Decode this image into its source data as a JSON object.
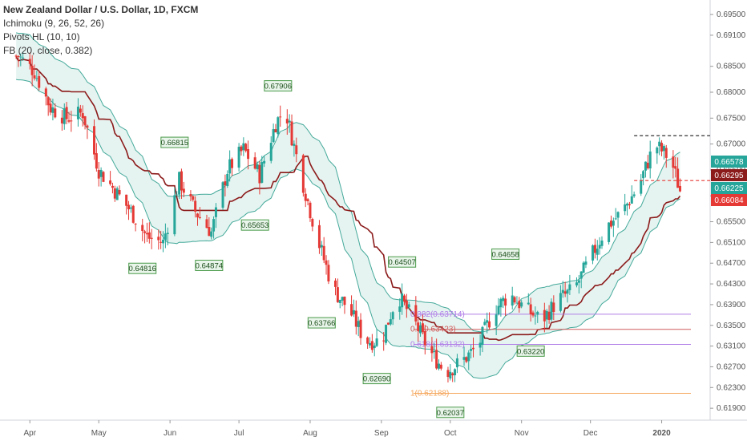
{
  "legend": {
    "symbol": "New Zealand Dollar / U.S. Dollar, 1D, FXCM",
    "indicators": [
      "Ichimoku (9, 26, 52, 26)",
      "Pivots HL (10, 10)",
      "FB (20, close, 0.382)"
    ]
  },
  "chart_data": {
    "type": "candlestick",
    "title": "New Zealand Dollar / U.S. Dollar, 1D, FXCM",
    "x_axis": {
      "ticks": [
        "Apr",
        "May",
        "Jun",
        "Jul",
        "Aug",
        "Sep",
        "Oct",
        "Nov",
        "Dec",
        "2020"
      ]
    },
    "y_axis": {
      "range": [
        0.6167,
        0.6978
      ],
      "ticks": [
        "0.69500",
        "0.69100",
        "0.68500",
        "0.68000",
        "0.67500",
        "0.67000",
        "0.66500",
        "0.66000",
        "0.65500",
        "0.65100",
        "0.64700",
        "0.64300",
        "0.63900",
        "0.63500",
        "0.63100",
        "0.62700",
        "0.62300",
        "0.61900"
      ]
    },
    "colors": {
      "up": "#26a69a",
      "down": "#e53935",
      "baseline": "#8b1a1a",
      "conversion": "#44a99a",
      "cloud": "#e6f4f1"
    },
    "pivots_high": [
      {
        "date": "2019-07-18",
        "value": "0.67906"
      },
      {
        "date": "2019-06-03",
        "value": "0.66815"
      },
      {
        "date": "2019-09-10",
        "value": "0.64507"
      },
      {
        "date": "2019-10-25",
        "value": "0.64658"
      }
    ],
    "pivots_low": [
      {
        "date": "2019-05-20",
        "value": "0.64816"
      },
      {
        "date": "2019-06-18",
        "value": "0.64874"
      },
      {
        "date": "2019-07-08",
        "value": "0.65653"
      },
      {
        "date": "2019-08-06",
        "value": "0.63766"
      },
      {
        "date": "2019-08-30",
        "value": "0.62690"
      },
      {
        "date": "2019-10-01",
        "value": "0.62037"
      },
      {
        "date": "2019-11-05",
        "value": "0.63220"
      }
    ],
    "fib_levels": [
      {
        "label": "0.382(0.63714)",
        "value": 0.63714,
        "color": "#b07ee8"
      },
      {
        "label": "0.5(0.63423)",
        "value": 0.63423,
        "color": "#d05a5a"
      },
      {
        "label": "0.618(0.63132)",
        "value": 0.63132,
        "color": "#b07ee8"
      },
      {
        "label": "1(0.62188)",
        "value": 0.62188,
        "color": "#f5a55a"
      }
    ],
    "price_badges": [
      {
        "value": "0.66578",
        "color": "#26a69a"
      },
      {
        "value": "0.66295",
        "color": "#8b1a1a"
      },
      {
        "value": "0.66225",
        "color": "#26a69a"
      },
      {
        "value": "0.66084",
        "color": "#e53935"
      }
    ],
    "dashed_levels": [
      {
        "value": 0.6716,
        "color": "#333333"
      },
      {
        "value": 0.66295,
        "color": "#e53935"
      }
    ],
    "path_points": [
      [
        "2019-03-27",
        0.687
      ],
      [
        "2019-04-03",
        0.684
      ],
      [
        "2019-04-10",
        0.677
      ],
      [
        "2019-04-17",
        0.675
      ],
      [
        "2019-04-24",
        0.676
      ],
      [
        "2019-05-01",
        0.665
      ],
      [
        "2019-05-08",
        0.661
      ],
      [
        "2019-05-15",
        0.657
      ],
      [
        "2019-05-22",
        0.652
      ],
      [
        "2019-05-29",
        0.651
      ],
      [
        "2019-06-05",
        0.663
      ],
      [
        "2019-06-12",
        0.657
      ],
      [
        "2019-06-19",
        0.653
      ],
      [
        "2019-06-26",
        0.665
      ],
      [
        "2019-07-03",
        0.669
      ],
      [
        "2019-07-10",
        0.664
      ],
      [
        "2019-07-17",
        0.674
      ],
      [
        "2019-07-21",
        0.677
      ],
      [
        "2019-07-28",
        0.664
      ],
      [
        "2019-08-04",
        0.652
      ],
      [
        "2019-08-11",
        0.642
      ],
      [
        "2019-08-18",
        0.638
      ],
      [
        "2019-08-25",
        0.632
      ],
      [
        "2019-09-01",
        0.632
      ],
      [
        "2019-09-08",
        0.641
      ],
      [
        "2019-09-15",
        0.636
      ],
      [
        "2019-09-22",
        0.63
      ],
      [
        "2019-09-29",
        0.626
      ],
      [
        "2019-10-06",
        0.628
      ],
      [
        "2019-10-13",
        0.631
      ],
      [
        "2019-10-20",
        0.638
      ],
      [
        "2019-10-27",
        0.641
      ],
      [
        "2019-11-03",
        0.638
      ],
      [
        "2019-11-10",
        0.636
      ],
      [
        "2019-11-17",
        0.64
      ],
      [
        "2019-11-24",
        0.642
      ],
      [
        "2019-12-01",
        0.648
      ],
      [
        "2019-12-08",
        0.654
      ],
      [
        "2019-12-15",
        0.657
      ],
      [
        "2019-12-22",
        0.662
      ],
      [
        "2019-12-29",
        0.67
      ],
      [
        "2020-01-05",
        0.667
      ],
      [
        "2020-01-09",
        0.661
      ]
    ]
  }
}
